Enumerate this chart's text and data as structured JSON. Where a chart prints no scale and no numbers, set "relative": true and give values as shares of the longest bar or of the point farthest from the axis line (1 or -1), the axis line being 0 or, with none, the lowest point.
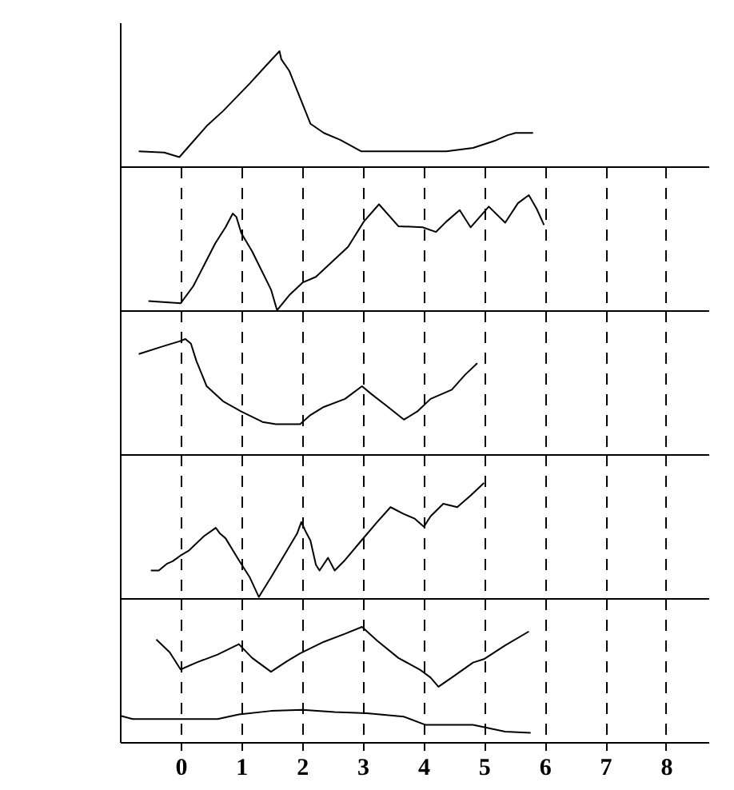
{
  "chart_data": [
    {
      "type": "line",
      "relative": true,
      "xlim": [
        -1,
        8.7
      ],
      "tick_labels": false,
      "series": [
        {
          "color": "#000000",
          "x": [
            -0.69,
            -0.27,
            -0.02,
            0.13,
            0.43,
            0.7,
            1.14,
            1.4,
            1.63,
            1.66,
            1.79,
            2.14,
            2.36,
            2.63,
            2.98,
            4.38,
            4.82,
            5.17,
            5.39,
            5.52,
            5.81
          ],
          "values": [
            0.13,
            0.12,
            0.08,
            0.17,
            0.35,
            0.48,
            0.72,
            0.87,
            1,
            0.93,
            0.83,
            0.37,
            0.29,
            0.23,
            0.13,
            0.13,
            0.16,
            0.22,
            0.27,
            0.29,
            0.29
          ]
        }
      ]
    },
    {
      "type": "line",
      "relative": true,
      "xlim": [
        -1,
        8.7
      ],
      "xticks": [
        0,
        1,
        2,
        3,
        4,
        5,
        6,
        7,
        8
      ],
      "grid": "x",
      "tick_labels": false,
      "series": [
        {
          "color": "#000000",
          "x": [
            -0.53,
            0.0,
            0.21,
            0.57,
            0.74,
            0.86,
            0.92,
            1.0,
            1.18,
            1.49,
            1.59,
            1.79,
            2.01,
            2.23,
            2.76,
            3.02,
            3.27,
            3.59,
            3.99,
            4.21,
            4.38,
            4.6,
            4.78,
            5.08,
            5.35,
            5.56,
            5.74,
            5.87,
            5.99
          ],
          "values": [
            0.08,
            0.06,
            0.21,
            0.58,
            0.72,
            0.84,
            0.81,
            0.67,
            0.51,
            0.18,
            0.0,
            0.13,
            0.24,
            0.29,
            0.55,
            0.77,
            0.92,
            0.73,
            0.72,
            0.68,
            0.77,
            0.87,
            0.72,
            0.9,
            0.76,
            0.93,
            1,
            0.88,
            0.74
          ]
        }
      ]
    },
    {
      "type": "line",
      "relative": true,
      "xlim": [
        -1,
        8.7
      ],
      "xticks": [
        0,
        1,
        2,
        3,
        4,
        5,
        6,
        7,
        8
      ],
      "grid": "x",
      "tick_labels": false,
      "series": [
        {
          "color": "#000000",
          "x": [
            -0.69,
            -0.27,
            -0.02,
            0.08,
            0.17,
            0.26,
            0.43,
            0.7,
            1.0,
            1.35,
            1.57,
            1.97,
            2.14,
            2.36,
            2.71,
            2.99,
            3.15,
            3.42,
            3.68,
            3.9,
            4.12,
            4.47,
            4.69,
            4.89
          ],
          "values": [
            0.87,
            0.94,
            0.98,
            1,
            0.96,
            0.81,
            0.59,
            0.46,
            0.37,
            0.28,
            0.26,
            0.26,
            0.34,
            0.41,
            0.48,
            0.59,
            0.52,
            0.41,
            0.3,
            0.37,
            0.48,
            0.56,
            0.69,
            0.79
          ]
        }
      ]
    },
    {
      "type": "line",
      "relative": true,
      "xlim": [
        -1,
        8.7
      ],
      "xticks": [
        0,
        1,
        2,
        3,
        4,
        5,
        6,
        7,
        8
      ],
      "grid": "x",
      "tick_labels": false,
      "series": [
        {
          "color": "#000000",
          "x": [
            -0.49,
            -0.36,
            -0.22,
            -0.13,
            0.0,
            0.13,
            0.39,
            0.58,
            0.65,
            0.74,
            0.96,
            1.14,
            1.29,
            1.49,
            1.75,
            1.92,
            1.99,
            2.06,
            2.14,
            2.23,
            2.29,
            2.43,
            2.54,
            2.71,
            2.98,
            3.24,
            3.46,
            3.68,
            3.86,
            4.01,
            4.12,
            4.33,
            4.56,
            4.78,
            5.0
          ],
          "values": [
            0.24,
            0.24,
            0.3,
            0.32,
            0.37,
            0.41,
            0.54,
            0.61,
            0.56,
            0.52,
            0.33,
            0.18,
            0.01,
            0.18,
            0.41,
            0.56,
            0.66,
            0.58,
            0.5,
            0.29,
            0.24,
            0.35,
            0.24,
            0.33,
            0.5,
            0.66,
            0.79,
            0.73,
            0.69,
            0.62,
            0.71,
            0.82,
            0.79,
            0.89,
            1
          ]
        }
      ]
    },
    {
      "type": "line",
      "relative": true,
      "xlim": [
        -1,
        8.7
      ],
      "xticks": [
        0,
        1,
        2,
        3,
        4,
        5,
        6,
        7,
        8
      ],
      "grid": "x",
      "series": [
        {
          "color": "#000000",
          "x": [
            -0.4,
            -0.18,
            0.0,
            0.26,
            0.61,
            0.96,
            1.18,
            1.49,
            1.75,
            1.97,
            2.36,
            2.71,
            2.99,
            3.24,
            3.59,
            3.94,
            4.12,
            4.25,
            4.47,
            4.82,
            5.0,
            5.35,
            5.74
          ],
          "values": [
            0.89,
            0.78,
            0.63,
            0.69,
            0.76,
            0.85,
            0.73,
            0.61,
            0.7,
            0.77,
            0.87,
            0.94,
            1,
            0.88,
            0.73,
            0.63,
            0.56,
            0.48,
            0.56,
            0.69,
            0.72,
            0.84,
            0.96
          ]
        },
        {
          "color": "#000000",
          "x": [
            -1.0,
            -0.79,
            0.61,
            0.96,
            1.49,
            2.01,
            2.54,
            3.07,
            3.68,
            4.03,
            4.82,
            5.35,
            5.77
          ],
          "values": [
            0.23,
            0.2,
            0.2,
            0.24,
            0.27,
            0.28,
            0.26,
            0.25,
            0.22,
            0.15,
            0.15,
            0.09,
            0.08
          ]
        }
      ]
    }
  ]
}
